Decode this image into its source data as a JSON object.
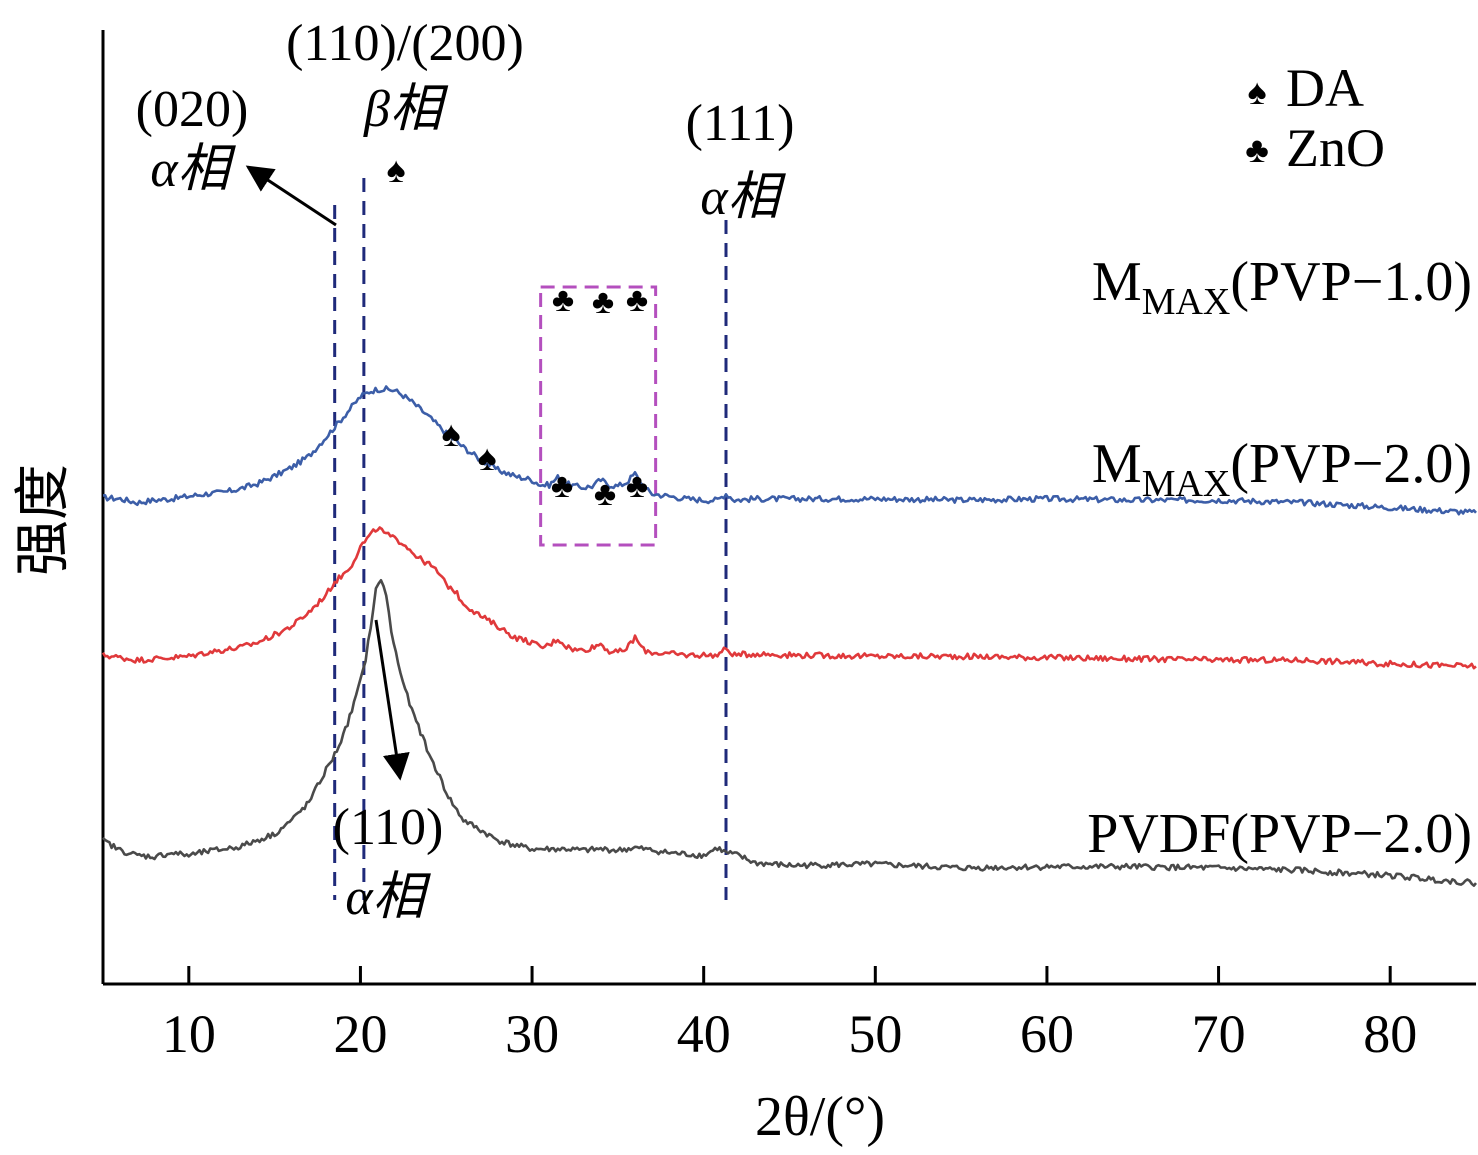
{
  "chart_data": {
    "type": "line",
    "xlabel": "2θ/(°)",
    "ylabel": "强度",
    "xlim": [
      5,
      85
    ],
    "xticks": [
      10,
      20,
      30,
      40,
      50,
      60,
      70,
      80
    ],
    "y_ticks_shown": false,
    "series": [
      {
        "name": "MMAX(PVP−1.0)",
        "name_main": "M",
        "name_sub": "MAX",
        "name_rest": "(PVP−1.0)",
        "color": "#3c5ea8",
        "offset": 2.9,
        "x": [
          5,
          6,
          7,
          8,
          9,
          10,
          11,
          12,
          13,
          14,
          15,
          16,
          17,
          18,
          18.5,
          19,
          19.5,
          20,
          20.5,
          21,
          21.5,
          22,
          22.5,
          23,
          24,
          25,
          26,
          27,
          28,
          29,
          30,
          30.5,
          31,
          31.5,
          32,
          32.5,
          33,
          33.5,
          34,
          34.5,
          35,
          35.5,
          36,
          36.5,
          37,
          38,
          39,
          40,
          40.8,
          41.3,
          41.8,
          43,
          45,
          50,
          55,
          60,
          65,
          70,
          75,
          80,
          85
        ],
        "y": [
          0.04,
          0.03,
          0.0,
          0.02,
          0.03,
          0.05,
          0.07,
          0.08,
          0.11,
          0.15,
          0.21,
          0.28,
          0.37,
          0.52,
          0.6,
          0.68,
          0.76,
          0.84,
          0.88,
          0.9,
          0.9,
          0.89,
          0.85,
          0.8,
          0.68,
          0.55,
          0.44,
          0.34,
          0.26,
          0.21,
          0.18,
          0.14,
          0.14,
          0.2,
          0.15,
          0.13,
          0.12,
          0.13,
          0.18,
          0.14,
          0.13,
          0.16,
          0.23,
          0.12,
          0.07,
          0.05,
          0.03,
          0.02,
          0.02,
          0.07,
          0.02,
          0.03,
          0.03,
          0.03,
          0.02,
          0.03,
          0.02,
          0.02,
          0.0,
          -0.04,
          -0.08
        ]
      },
      {
        "name": "MMAX(PVP−2.0)",
        "name_main": "M",
        "name_sub": "MAX",
        "name_rest": "(PVP−2.0)",
        "color": "#e0393b",
        "offset": 1.65,
        "x": [
          5,
          6,
          7,
          8,
          9,
          10,
          11,
          12,
          13,
          14,
          15,
          16,
          17,
          18,
          18.5,
          19,
          19.5,
          20,
          20.5,
          21,
          21.5,
          22,
          22.5,
          23,
          23.5,
          24,
          24.5,
          25,
          25.5,
          26,
          27,
          28,
          29,
          30,
          30.5,
          31,
          31.5,
          32,
          32.5,
          33,
          33.5,
          34,
          34.5,
          35,
          35.5,
          36,
          36.5,
          37,
          38,
          39,
          40,
          40.8,
          41.3,
          41.8,
          43,
          45,
          50,
          55,
          60,
          65,
          70,
          75,
          80,
          85
        ],
        "y": [
          0.04,
          0.02,
          0.0,
          0.01,
          0.02,
          0.03,
          0.06,
          0.08,
          0.1,
          0.14,
          0.2,
          0.27,
          0.38,
          0.52,
          0.62,
          0.68,
          0.76,
          0.9,
          0.98,
          1.05,
          1.0,
          0.96,
          0.93,
          0.86,
          0.8,
          0.76,
          0.7,
          0.6,
          0.55,
          0.45,
          0.35,
          0.27,
          0.18,
          0.14,
          0.1,
          0.12,
          0.17,
          0.11,
          0.08,
          0.08,
          0.1,
          0.13,
          0.07,
          0.06,
          0.09,
          0.18,
          0.08,
          0.06,
          0.05,
          0.04,
          0.04,
          0.04,
          0.09,
          0.04,
          0.05,
          0.04,
          0.03,
          0.03,
          0.02,
          0.01,
          0.0,
          0.0,
          -0.03,
          -0.05
        ]
      },
      {
        "name": "PVDF(PVP−2.0)",
        "name_main": "PVDF(PVP−2.0)",
        "name_sub": "",
        "name_rest": "",
        "color": "#4a4a4a",
        "offset": 0,
        "x": [
          5,
          6,
          7,
          8,
          9,
          10,
          11,
          12,
          13,
          14,
          15,
          16,
          17,
          17.5,
          18,
          18.5,
          19,
          19.5,
          20,
          20.3,
          20.6,
          20.9,
          21.2,
          21.5,
          21.8,
          22.2,
          22.6,
          23,
          23.5,
          24,
          24.5,
          25,
          25.5,
          26,
          27,
          28,
          29,
          30,
          31,
          32,
          33,
          34,
          35,
          36,
          37,
          38,
          39,
          40,
          40.8,
          41.3,
          41.8,
          42.5,
          43,
          45,
          50,
          55,
          60,
          65,
          70,
          75,
          80,
          85
        ],
        "y": [
          0.22,
          0.14,
          0.1,
          0.09,
          0.12,
          0.1,
          0.13,
          0.15,
          0.17,
          0.22,
          0.27,
          0.38,
          0.52,
          0.65,
          0.78,
          0.9,
          1.05,
          1.25,
          1.48,
          1.66,
          1.92,
          2.2,
          2.3,
          2.16,
          1.88,
          1.62,
          1.42,
          1.25,
          1.08,
          0.9,
          0.76,
          0.6,
          0.48,
          0.38,
          0.3,
          0.22,
          0.18,
          0.15,
          0.15,
          0.15,
          0.14,
          0.15,
          0.14,
          0.16,
          0.14,
          0.12,
          0.11,
          0.1,
          0.16,
          0.12,
          0.11,
          0.07,
          0.04,
          0.02,
          0.03,
          0.0,
          0.01,
          0.01,
          0.0,
          -0.02,
          -0.06,
          -0.12
        ]
      }
    ],
    "legend": [
      {
        "symbol": "♠",
        "label": "DA"
      },
      {
        "symbol": "♣",
        "label": "ZnO"
      }
    ],
    "legend_placement": "top-right",
    "reference_lines_x": [
      18.5,
      20.2,
      41.3
    ],
    "highlight_box_x": [
      30.5,
      37.2
    ],
    "annotations": {
      "a020_line1": "(020)",
      "a020_line2": "α相",
      "a110_200_line1": "(110)/(200)",
      "a110_200_line2": "β相",
      "a111_line1": "(111)",
      "a111_line2": "α相",
      "a110_line1": "(110)",
      "a110_line2": "α相",
      "spade": "♠",
      "club": "♣"
    }
  }
}
